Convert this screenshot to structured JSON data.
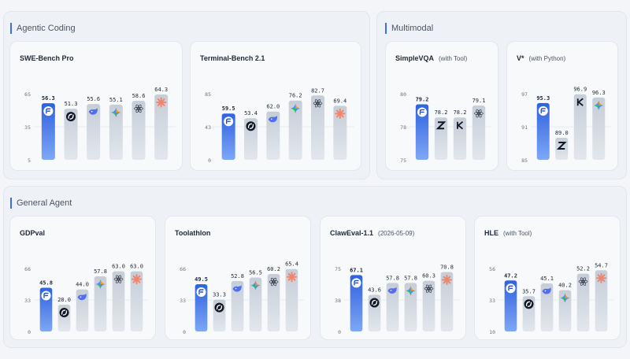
{
  "sections": [
    {
      "title": "Agentic Coding"
    },
    {
      "title": "Multimodal"
    },
    {
      "title": "General Agent"
    }
  ],
  "colors": {
    "highlight_top": "#2f62e0",
    "highlight_bottom": "#7ea7f5",
    "bar_top": "#c6cdd7",
    "bar_bottom": "#e3e7ed",
    "value_label": "#1f2937",
    "axis_label": "#6b7280"
  },
  "chart_data": [
    {
      "type": "bar",
      "title": "SWE-Bench Pro",
      "subtitle": "",
      "ylim": [
        5,
        65
      ],
      "yticks": [
        "65",
        "35",
        "5"
      ],
      "values": [
        56.3,
        51.3,
        55.6,
        55.1,
        58.6,
        64.3
      ],
      "value_labels": [
        "56.3",
        "51.3",
        "55.6",
        "55.1",
        "58.6",
        "64.3"
      ],
      "icons": [
        "brand-logo-icon",
        "swirl-logo-icon",
        "whale-logo-icon",
        "sparkle-logo-icon",
        "openai-logo-icon",
        "burst-logo-icon"
      ],
      "highlight_index": 0
    },
    {
      "type": "bar",
      "title": "Terminal-Bench 2.1",
      "subtitle": "",
      "ylim": [
        0,
        85
      ],
      "yticks": [
        "85",
        "43",
        "0"
      ],
      "values": [
        59.5,
        53.4,
        62.0,
        76.2,
        82.7,
        69.4
      ],
      "value_labels": [
        "59.5",
        "53.4",
        "62.0",
        "76.2",
        "82.7",
        "69.4"
      ],
      "icons": [
        "brand-logo-icon",
        "swirl-logo-icon",
        "whale-logo-icon",
        "sparkle-logo-icon",
        "openai-logo-icon",
        "burst-logo-icon"
      ],
      "highlight_index": 0
    },
    {
      "type": "bar",
      "title": "SimpleVQA",
      "subtitle": "(with Tool)",
      "ylim": [
        75,
        80
      ],
      "yticks": [
        "80",
        "78",
        "75"
      ],
      "values": [
        79.2,
        78.2,
        78.2,
        79.1
      ],
      "value_labels": [
        "79.2",
        "78.2",
        "78.2",
        "79.1"
      ],
      "icons": [
        "brand-logo-icon",
        "z-logo-icon",
        "k-logo-icon",
        "openai-logo-icon"
      ],
      "highlight_index": 0
    },
    {
      "type": "bar",
      "title": "V*",
      "subtitle": "(with Python)",
      "ylim": [
        85,
        97
      ],
      "yticks": [
        "97",
        "91",
        "85"
      ],
      "values": [
        95.3,
        89.0,
        96.9,
        96.3
      ],
      "value_labels": [
        "95.3",
        "89.0",
        "96.9",
        "96.3"
      ],
      "icons": [
        "brand-logo-icon",
        "z-logo-icon",
        "k-logo-icon",
        "sparkle-logo-icon"
      ],
      "highlight_index": 0
    },
    {
      "type": "bar",
      "title": "GDPval",
      "subtitle": "",
      "ylim": [
        0,
        66
      ],
      "yticks": [
        "66",
        "33",
        "0"
      ],
      "values": [
        45.8,
        28.0,
        44.0,
        57.8,
        63.0,
        63.0
      ],
      "value_labels": [
        "45.8",
        "28.0",
        "44.0",
        "57.8",
        "63.0",
        "63.0"
      ],
      "icons": [
        "brand-logo-icon",
        "swirl-logo-icon",
        "whale-logo-icon",
        "sparkle-logo-icon",
        "openai-logo-icon",
        "burst-logo-icon"
      ],
      "highlight_index": 0
    },
    {
      "type": "bar",
      "title": "Toolathlon",
      "subtitle": "",
      "ylim": [
        0,
        66
      ],
      "yticks": [
        "66",
        "33",
        "0"
      ],
      "values": [
        49.5,
        33.3,
        52.8,
        56.5,
        60.2,
        65.4
      ],
      "value_labels": [
        "49.5",
        "33.3",
        "52.8",
        "56.5",
        "60.2",
        "65.4"
      ],
      "icons": [
        "brand-logo-icon",
        "swirl-logo-icon",
        "whale-logo-icon",
        "sparkle-logo-icon",
        "openai-logo-icon",
        "burst-logo-icon"
      ],
      "highlight_index": 0
    },
    {
      "type": "bar",
      "title": "ClawEval-1.1",
      "subtitle": "(2026-05-09)",
      "ylim": [
        0,
        75
      ],
      "yticks": [
        "75",
        "38",
        "0"
      ],
      "values": [
        67.1,
        43.6,
        57.8,
        57.8,
        60.3,
        70.8
      ],
      "value_labels": [
        "67.1",
        "43.6",
        "57.8",
        "57.8",
        "60.3",
        "70.8"
      ],
      "icons": [
        "brand-logo-icon",
        "swirl-logo-icon",
        "whale-logo-icon",
        "sparkle-logo-icon",
        "openai-logo-icon",
        "burst-logo-icon"
      ],
      "highlight_index": 0
    },
    {
      "type": "bar",
      "title": "HLE",
      "subtitle": "(with Tool)",
      "ylim": [
        10,
        56
      ],
      "yticks": [
        "56",
        "33",
        "10"
      ],
      "values": [
        47.2,
        35.7,
        45.1,
        40.2,
        52.2,
        54.7
      ],
      "value_labels": [
        "47.2",
        "35.7",
        "45.1",
        "40.2",
        "52.2",
        "54.7"
      ],
      "icons": [
        "brand-logo-icon",
        "swirl-logo-icon",
        "whale-logo-icon",
        "sparkle-logo-icon",
        "openai-logo-icon",
        "burst-logo-icon"
      ],
      "highlight_index": 0
    }
  ]
}
